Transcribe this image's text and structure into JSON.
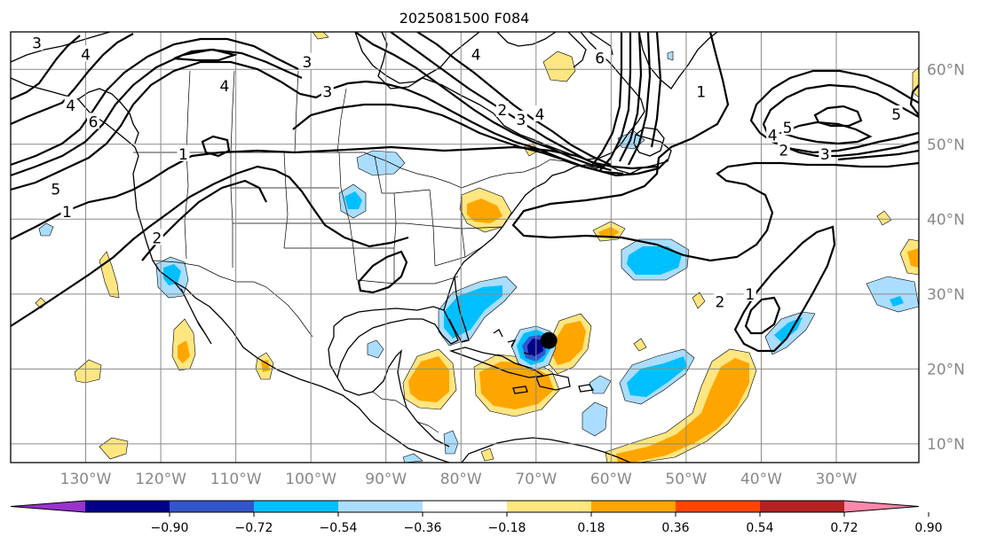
{
  "title": "2025081500 F084",
  "map": {
    "lon_range": [
      -140,
      -19
    ],
    "lat_range": [
      7.5,
      65
    ],
    "lon_ticks": [
      {
        "value": -130,
        "label": "130°W"
      },
      {
        "value": -120,
        "label": "120°W"
      },
      {
        "value": -110,
        "label": "110°W"
      },
      {
        "value": -100,
        "label": "100°W"
      },
      {
        "value": -90,
        "label": "90°W"
      },
      {
        "value": -80,
        "label": "80°W"
      },
      {
        "value": -70,
        "label": "70°W"
      },
      {
        "value": -60,
        "label": "60°W"
      },
      {
        "value": -50,
        "label": "50°W"
      },
      {
        "value": -40,
        "label": "40°W"
      },
      {
        "value": -30,
        "label": "30°W"
      }
    ],
    "lat_ticks": [
      {
        "value": 60,
        "label": "60°N"
      },
      {
        "value": 50,
        "label": "50°N"
      },
      {
        "value": 40,
        "label": "40°N"
      },
      {
        "value": 30,
        "label": "30°N"
      },
      {
        "value": 20,
        "label": "20°N"
      },
      {
        "value": 10,
        "label": "10°N"
      }
    ],
    "storm_marker": {
      "lon": -68.3,
      "lat": 23.8
    },
    "contour_labels": [
      {
        "lon": -136.5,
        "lat": 63.5,
        "text": "3"
      },
      {
        "lon": -130,
        "lat": 62,
        "text": "4"
      },
      {
        "lon": -111.5,
        "lat": 57.8,
        "text": "4"
      },
      {
        "lon": -100.5,
        "lat": 61,
        "text": "3"
      },
      {
        "lon": -97.8,
        "lat": 57,
        "text": "3"
      },
      {
        "lon": -117,
        "lat": 48.7,
        "text": "1"
      },
      {
        "lon": -78,
        "lat": 62,
        "text": "4"
      },
      {
        "lon": -74.5,
        "lat": 54.6,
        "text": "2"
      },
      {
        "lon": -72,
        "lat": 53.3,
        "text": "3"
      },
      {
        "lon": -69.5,
        "lat": 54,
        "text": "4"
      },
      {
        "lon": -61.5,
        "lat": 61.5,
        "text": "6"
      },
      {
        "lon": -132,
        "lat": 55.2,
        "text": "4"
      },
      {
        "lon": -129,
        "lat": 53,
        "text": "6"
      },
      {
        "lon": -134,
        "lat": 44,
        "text": "5"
      },
      {
        "lon": -132.5,
        "lat": 41,
        "text": "1"
      },
      {
        "lon": -120.5,
        "lat": 37.5,
        "text": "2"
      },
      {
        "lon": -48,
        "lat": 57,
        "text": "1"
      },
      {
        "lon": -38.5,
        "lat": 51.2,
        "text": "4"
      },
      {
        "lon": -36.5,
        "lat": 52.2,
        "text": "5"
      },
      {
        "lon": -37,
        "lat": 49.2,
        "text": "2"
      },
      {
        "lon": -31.5,
        "lat": 48.7,
        "text": "3"
      },
      {
        "lon": -22,
        "lat": 54,
        "text": "5"
      },
      {
        "lon": -45.5,
        "lat": 29,
        "text": "2"
      },
      {
        "lon": -41.5,
        "lat": 30,
        "text": "1"
      }
    ]
  },
  "colorbar": {
    "colors": [
      "#9933cc",
      "#00008b",
      "#3355cc",
      "#00bfff",
      "#aaddff",
      "#ffffff",
      "#ffe680",
      "#ffa500",
      "#ff4500",
      "#b22222",
      "#ff88aa"
    ],
    "tick_labels": [
      "−0.90",
      "−0.72",
      "−0.54",
      "−0.36",
      "−0.18",
      "0.18",
      "0.36",
      "0.54",
      "0.72",
      "0.90"
    ]
  }
}
